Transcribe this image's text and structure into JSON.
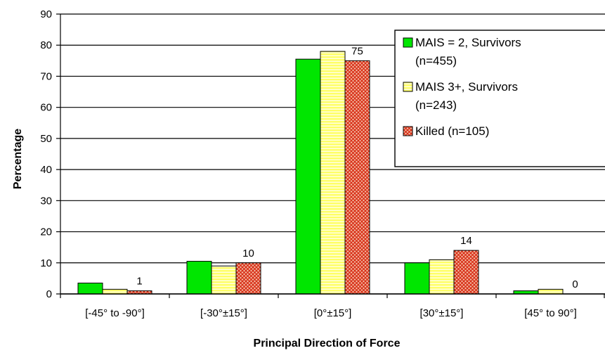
{
  "chart_data": {
    "type": "bar",
    "title": "",
    "xlabel": "Principal Direction of Force",
    "ylabel": "Percentage",
    "ylim": [
      0,
      90
    ],
    "yticks": [
      0,
      10,
      20,
      30,
      40,
      50,
      60,
      70,
      80,
      90
    ],
    "grid": true,
    "legend_position": "top-right",
    "categories": [
      "[-45° to -90°]",
      "[-30°±15°]",
      "[0°±15°]",
      "[30°±15°]",
      "[45° to 90°]"
    ],
    "series": [
      {
        "name": "MAIS = 2, Survivors",
        "name_line2": "(n=455)",
        "color": "#00e600",
        "pattern": "solid",
        "values": [
          3.5,
          10.5,
          75.5,
          10,
          1
        ]
      },
      {
        "name": "MAIS 3+, Survivors",
        "name_line2": "(n=243)",
        "color": "#ffff66",
        "pattern": "horizontal-stripes",
        "values": [
          1.5,
          9,
          78,
          11,
          1.5
        ]
      },
      {
        "name": "Killed (n=105)",
        "name_line2": "",
        "color": "#e04020",
        "pattern": "crosshatch",
        "values": [
          1,
          10,
          75,
          14,
          0
        ]
      }
    ],
    "data_labels": [
      {
        "series": 2,
        "category": 0,
        "text": "1"
      },
      {
        "series": 2,
        "category": 1,
        "text": "10"
      },
      {
        "series": 2,
        "category": 2,
        "text": "75"
      },
      {
        "series": 2,
        "category": 3,
        "text": "14"
      },
      {
        "series": 2,
        "category": 4,
        "text": "0"
      }
    ]
  }
}
